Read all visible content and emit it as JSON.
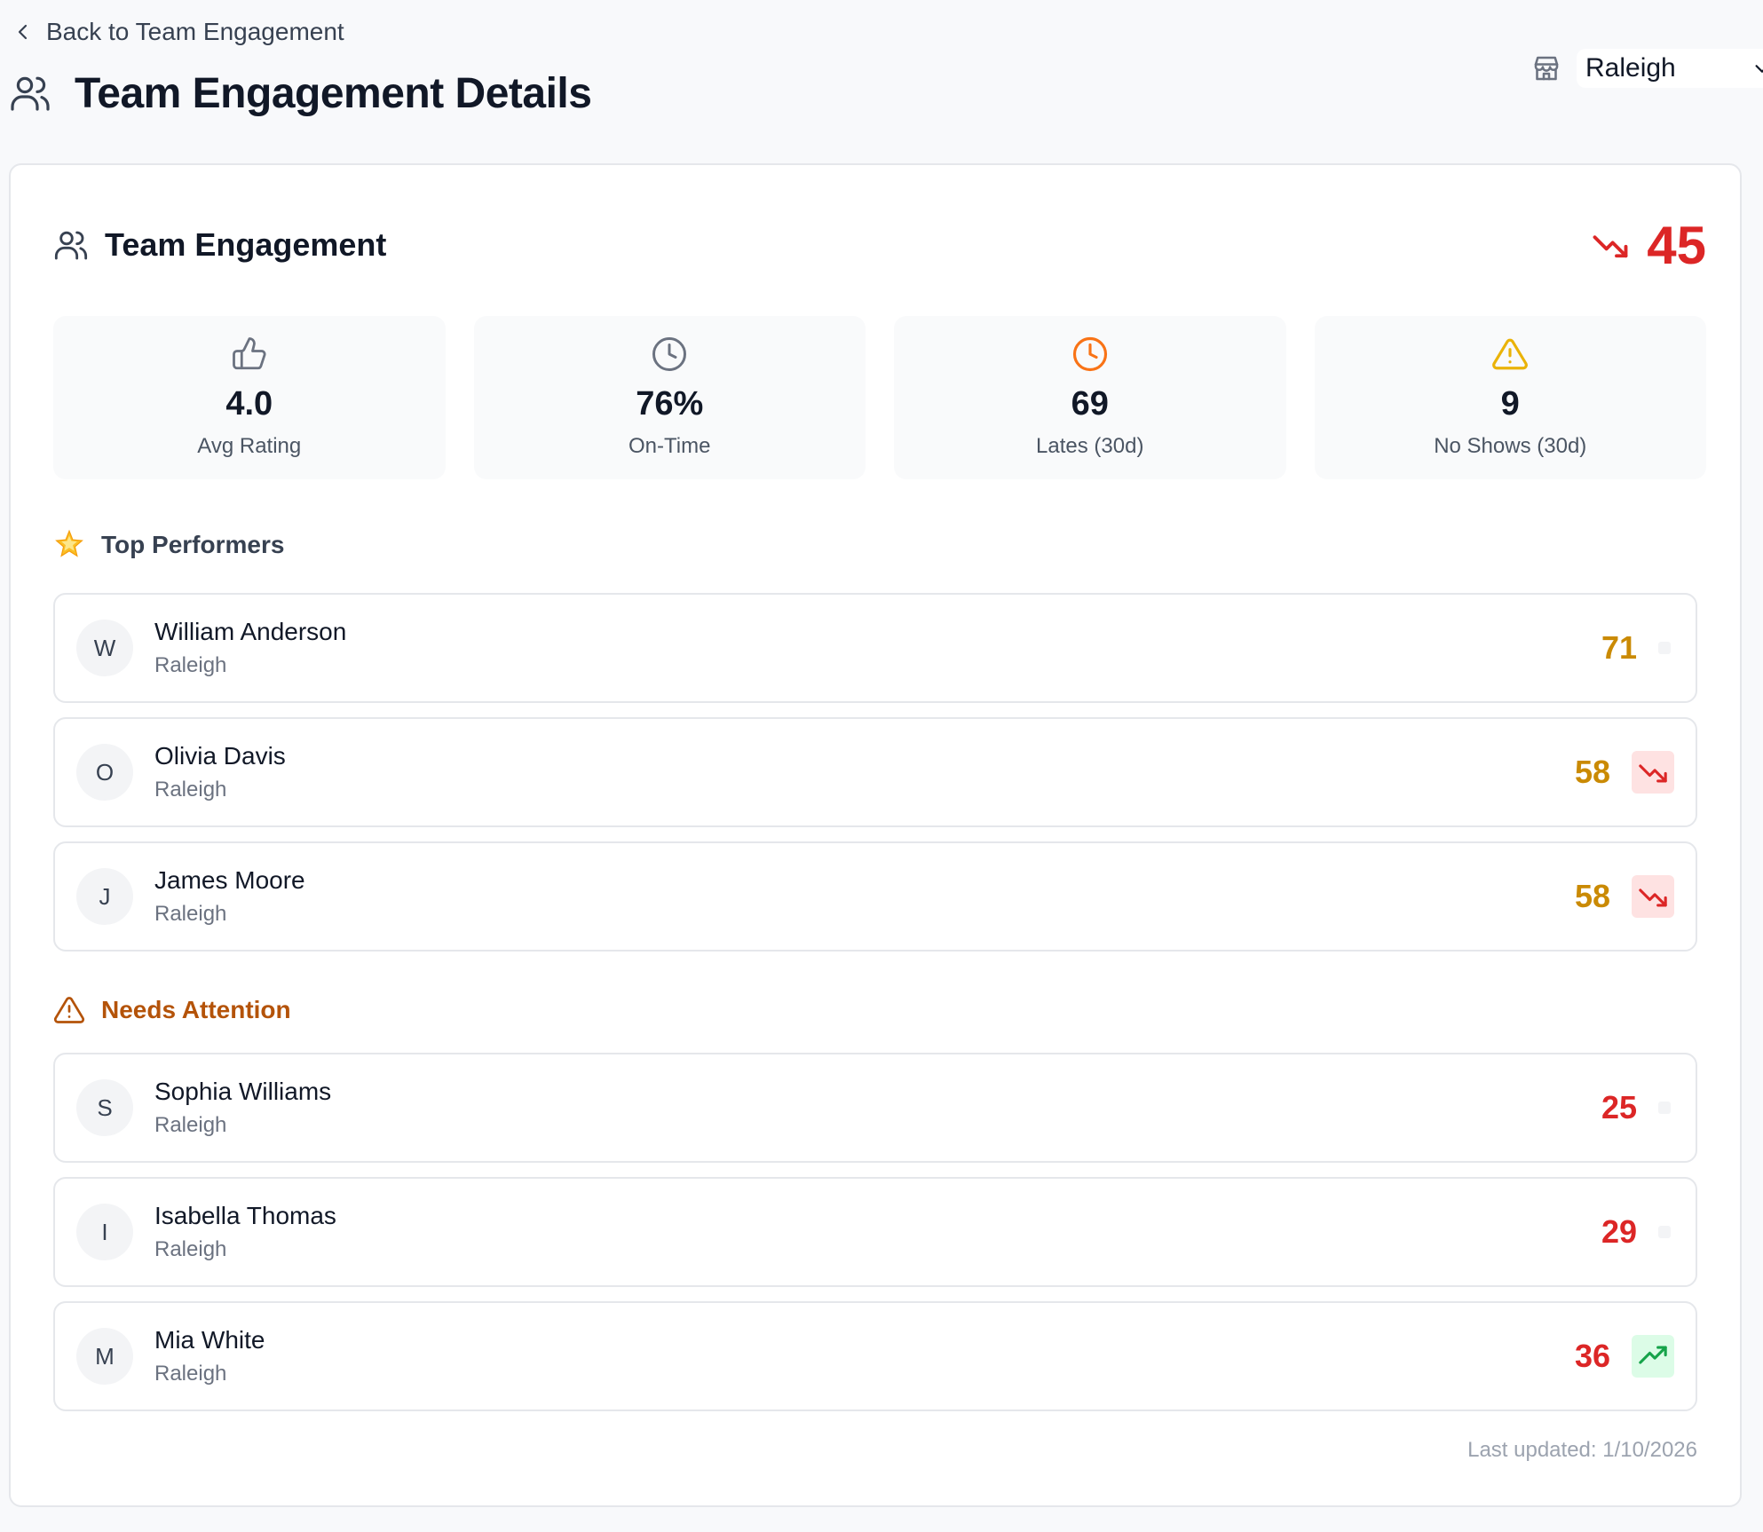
{
  "nav": {
    "back_label": "Back to Team Engagement"
  },
  "header": {
    "title": "Team Engagement Details"
  },
  "store_selector": {
    "value": "Raleigh"
  },
  "card": {
    "title": "Team Engagement",
    "score": "45",
    "score_trend": "down",
    "colors": {
      "score": "#dc2626",
      "warning": "#b45309",
      "amber": "#ca8a04"
    }
  },
  "stats": [
    {
      "icon": "thumbs-up-icon",
      "value": "4.0",
      "label": "Avg Rating"
    },
    {
      "icon": "clock-icon",
      "value": "76%",
      "label": "On-Time"
    },
    {
      "icon": "clock-orange-icon",
      "value": "69",
      "label": "Lates (30d)"
    },
    {
      "icon": "alert-triangle-icon",
      "value": "9",
      "label": "No Shows (30d)"
    }
  ],
  "top_performers": {
    "heading": "Top Performers",
    "icon": "star-icon",
    "items": [
      {
        "initial": "W",
        "name": "William Anderson",
        "location": "Raleigh",
        "score": "71",
        "trend": "none"
      },
      {
        "initial": "O",
        "name": "Olivia Davis",
        "location": "Raleigh",
        "score": "58",
        "trend": "down"
      },
      {
        "initial": "J",
        "name": "James Moore",
        "location": "Raleigh",
        "score": "58",
        "trend": "down"
      }
    ]
  },
  "needs_attention": {
    "heading": "Needs Attention",
    "icon": "alert-triangle-icon",
    "items": [
      {
        "initial": "S",
        "name": "Sophia Williams",
        "location": "Raleigh",
        "score": "25",
        "trend": "none"
      },
      {
        "initial": "I",
        "name": "Isabella Thomas",
        "location": "Raleigh",
        "score": "29",
        "trend": "none"
      },
      {
        "initial": "M",
        "name": "Mia White",
        "location": "Raleigh",
        "score": "36",
        "trend": "up"
      }
    ]
  },
  "footer": {
    "last_updated": "Last updated: 1/10/2026"
  }
}
